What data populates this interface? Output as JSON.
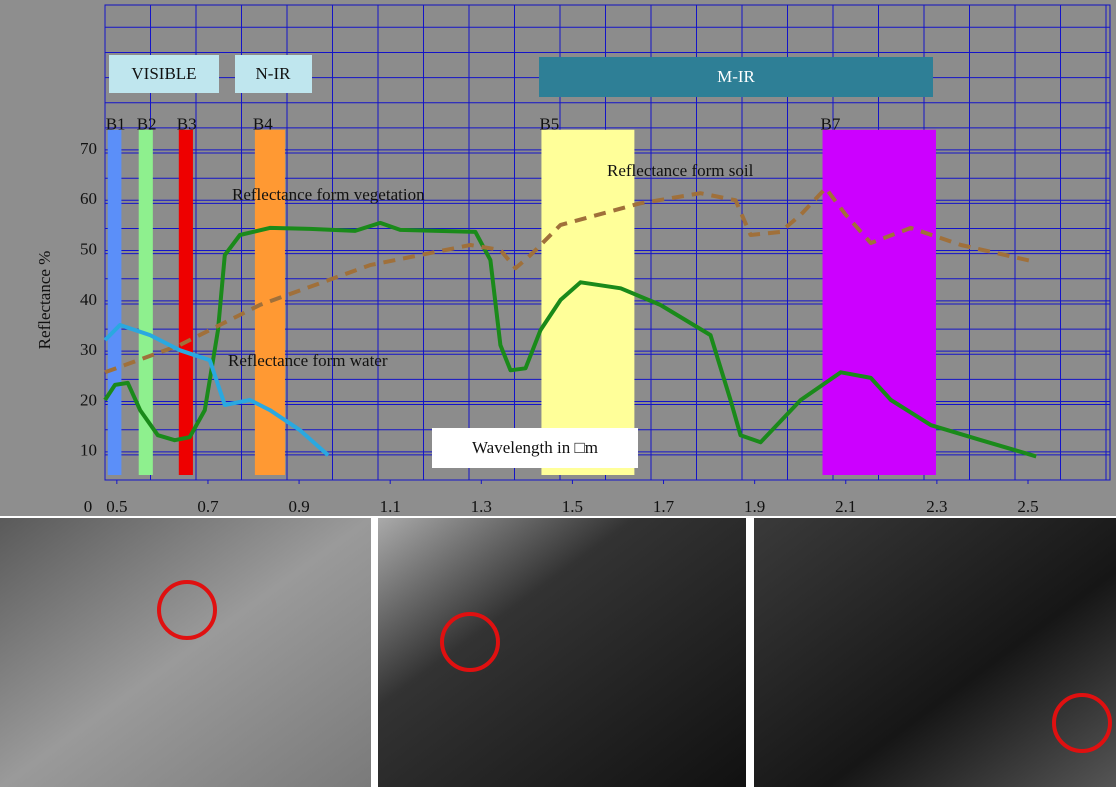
{
  "chart_data": {
    "type": "line",
    "y_label": "Reflectance %",
    "x_label": "Wavelength in □m",
    "origin_label": "0",
    "xlim": [
      0.474,
      2.68
    ],
    "ylim": [
      4.4,
      98.8
    ],
    "xticks": [
      0.5,
      0.7,
      0.9,
      1.1,
      1.3,
      1.5,
      1.7,
      1.9,
      2.1,
      2.3,
      2.5
    ],
    "yticks": [
      10,
      20,
      30,
      40,
      50,
      60,
      70
    ],
    "grid": true,
    "regions": [
      "VISIBLE",
      "N-IR",
      "M-IR"
    ],
    "bands": [
      {
        "name": "B1",
        "range": [
          0.48,
          0.51
        ],
        "top": 74,
        "color": "#5b8ff9"
      },
      {
        "name": "B2",
        "range": [
          0.548,
          0.579
        ],
        "top": 74,
        "color": "#8ef08e"
      },
      {
        "name": "B3",
        "range": [
          0.636,
          0.667
        ],
        "top": 74,
        "color": "#ee0000"
      },
      {
        "name": "B4",
        "range": [
          0.803,
          0.869
        ],
        "top": 74,
        "color": "#ff9933"
      },
      {
        "name": "B5",
        "range": [
          1.432,
          1.636
        ],
        "top": 74,
        "color": "#ffff99"
      },
      {
        "name": "B7",
        "range": [
          2.049,
          2.298
        ],
        "top": 74,
        "color": "#cc00ff"
      }
    ],
    "series": [
      {
        "name": "Reflectance form vegetation",
        "color": "#1a8a1a",
        "dashed": false,
        "x": [
          0.474,
          0.496,
          0.524,
          0.551,
          0.59,
          0.627,
          0.66,
          0.693,
          0.722,
          0.737,
          0.77,
          0.836,
          0.924,
          1.023,
          1.078,
          1.122,
          1.287,
          1.32,
          1.342,
          1.364,
          1.397,
          1.43,
          1.474,
          1.518,
          1.606,
          1.693,
          1.803,
          1.847,
          1.869,
          1.913,
          2.001,
          2.089,
          2.155,
          2.199,
          2.287,
          2.397,
          2.518
        ],
        "values": [
          20.3,
          23.3,
          23.7,
          18.3,
          13.3,
          12.3,
          12.9,
          18.3,
          34.2,
          49.1,
          53.1,
          54.5,
          54.3,
          53.9,
          55.5,
          54.1,
          53.7,
          48.1,
          31.2,
          26.2,
          26.6,
          34.2,
          40.2,
          43.7,
          42.5,
          39.2,
          33.2,
          20.3,
          13.3,
          11.9,
          20.3,
          25.8,
          24.7,
          20.3,
          15.3,
          12.3,
          9.1
        ]
      },
      {
        "name": "Reflectance form soil",
        "color": "#a0703a",
        "dashed": true,
        "x": [
          0.474,
          0.638,
          0.814,
          1.056,
          1.276,
          1.342,
          1.375,
          1.408,
          1.474,
          1.649,
          1.781,
          1.858,
          1.891,
          1.957,
          2.001,
          2.056,
          2.1,
          2.155,
          2.243,
          2.353,
          2.518
        ],
        "values": [
          25.8,
          31.2,
          39.2,
          47.1,
          51.1,
          50.1,
          46.5,
          49.1,
          55.1,
          59.4,
          61.4,
          60.0,
          53.1,
          53.7,
          57.1,
          62.4,
          57.1,
          51.5,
          54.5,
          51.1,
          47.7
        ]
      },
      {
        "name": "Reflectance form water",
        "color": "#2aa8e0",
        "dashed": false,
        "x": [
          0.474,
          0.507,
          0.573,
          0.638,
          0.704,
          0.737,
          0.792,
          0.836,
          0.902,
          0.964
        ],
        "values": [
          32.2,
          35.2,
          33.2,
          30.2,
          28.2,
          19.3,
          20.3,
          18.3,
          14.3,
          9.3
        ]
      }
    ]
  }
}
